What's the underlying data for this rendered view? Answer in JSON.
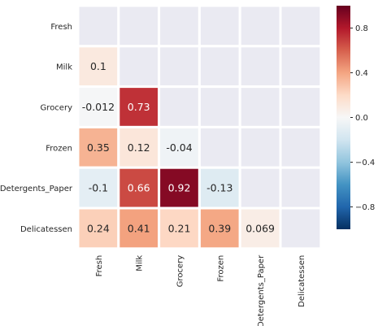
{
  "chart_data": {
    "type": "heatmap",
    "variables": [
      "Fresh",
      "Milk",
      "Grocery",
      "Frozen",
      "Detergents_Paper",
      "Delicatessen"
    ],
    "mask": "upper-triangle-including-diagonal",
    "values": [
      [
        null,
        null,
        null,
        null,
        null,
        null
      ],
      [
        0.1,
        null,
        null,
        null,
        null,
        null
      ],
      [
        -0.012,
        0.73,
        null,
        null,
        null,
        null
      ],
      [
        0.35,
        0.12,
        -0.04,
        null,
        null,
        null
      ],
      [
        -0.1,
        0.66,
        0.92,
        -0.13,
        null,
        null
      ],
      [
        0.24,
        0.41,
        0.21,
        0.39,
        0.069,
        null
      ]
    ],
    "value_labels": [
      [
        "",
        "",
        "",
        "",
        "",
        ""
      ],
      [
        "0.1",
        "",
        "",
        "",
        "",
        ""
      ],
      [
        "-0.012",
        "0.73",
        "",
        "",
        "",
        ""
      ],
      [
        "0.35",
        "0.12",
        "-0.04",
        "",
        "",
        ""
      ],
      [
        "-0.1",
        "0.66",
        "0.92",
        "-0.13",
        "",
        ""
      ],
      [
        "0.24",
        "0.41",
        "0.21",
        "0.39",
        "0.069",
        ""
      ]
    ],
    "colorbar": {
      "colormap": "RdBu_r",
      "range": [
        -1,
        1
      ],
      "ticks": [
        -0.8,
        -0.4,
        0.0,
        0.4,
        0.8
      ],
      "tick_labels": [
        "−0.8",
        "−0.4",
        "0.0",
        "0.4",
        "0.8"
      ]
    },
    "masked_cell_color": "#eaeaf2",
    "grid_line_color": "#ffffff"
  }
}
